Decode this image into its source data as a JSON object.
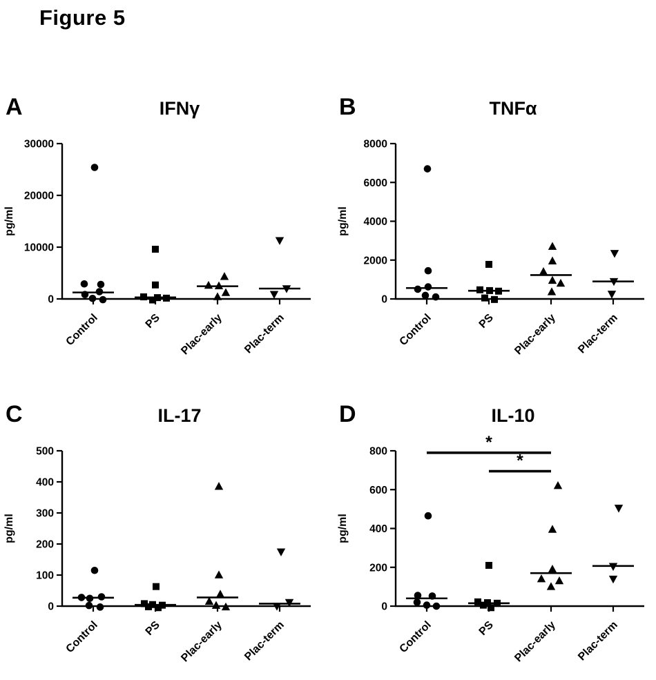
{
  "figure": {
    "title": "Figure 5"
  },
  "style": {
    "ink": "#000000",
    "background": "#ffffff"
  },
  "marker_glyphs": {
    "circle": "●",
    "square": "■",
    "triangle-up": "▲",
    "triangle-down": "▼"
  },
  "chart_data": [
    {
      "panel": "A",
      "type": "scatter",
      "title": "IFNγ",
      "ylabel": "pg/ml",
      "ylim": [
        0,
        30000
      ],
      "yticks": [
        0,
        10000,
        20000,
        30000
      ],
      "categories": [
        "Control",
        "PS",
        "Plac-early",
        "Plac-term"
      ],
      "grid": false,
      "groups": [
        {
          "label": "Control",
          "marker": "circle",
          "median": 1250,
          "points": [
            [
              25400,
              2
            ],
            [
              2900,
              -13
            ],
            [
              2800,
              11
            ],
            [
              1400,
              9
            ],
            [
              850,
              -12
            ],
            [
              100,
              -1
            ],
            [
              -150,
              14
            ]
          ]
        },
        {
          "label": "PS",
          "marker": "square",
          "median": 300,
          "points": [
            [
              9600,
              0
            ],
            [
              2700,
              0
            ],
            [
              400,
              -17
            ],
            [
              250,
              3
            ],
            [
              150,
              16
            ],
            [
              -200,
              -4
            ]
          ]
        },
        {
          "label": "Plac-early",
          "marker": "triangle-up",
          "median": 2450,
          "points": [
            [
              4300,
              10
            ],
            [
              2600,
              -13
            ],
            [
              2500,
              2
            ],
            [
              1200,
              12
            ],
            [
              400,
              0
            ]
          ]
        },
        {
          "label": "Plac-term",
          "marker": "triangle-down",
          "median": 2000,
          "points": [
            [
              11300,
              0
            ],
            [
              2000,
              10
            ],
            [
              900,
              -8
            ]
          ]
        }
      ]
    },
    {
      "panel": "B",
      "type": "scatter",
      "title": "TNFα",
      "ylabel": "pg/ml",
      "ylim": [
        0,
        8000
      ],
      "yticks": [
        0,
        2000,
        4000,
        6000,
        8000
      ],
      "categories": [
        "Control",
        "PS",
        "Plac-early",
        "Plac-term"
      ],
      "grid": false,
      "groups": [
        {
          "label": "Control",
          "marker": "circle",
          "median": 560,
          "points": [
            [
              6700,
              1
            ],
            [
              1450,
              2
            ],
            [
              620,
              2
            ],
            [
              500,
              -13
            ],
            [
              180,
              -2
            ],
            [
              100,
              13
            ]
          ]
        },
        {
          "label": "PS",
          "marker": "square",
          "median": 420,
          "points": [
            [
              1780,
              0
            ],
            [
              470,
              -13
            ],
            [
              430,
              1
            ],
            [
              400,
              14
            ],
            [
              50,
              -6
            ],
            [
              -30,
              8
            ]
          ]
        },
        {
          "label": "Plac-early",
          "marker": "triangle-up",
          "median": 1230,
          "points": [
            [
              2700,
              2
            ],
            [
              1950,
              2
            ],
            [
              1400,
              -11
            ],
            [
              950,
              2
            ],
            [
              800,
              14
            ],
            [
              360,
              1
            ]
          ]
        },
        {
          "label": "Plac-term",
          "marker": "triangle-down",
          "median": 900,
          "points": [
            [
              2350,
              2
            ],
            [
              900,
              1
            ],
            [
              250,
              -2
            ]
          ]
        }
      ]
    },
    {
      "panel": "C",
      "type": "scatter",
      "title": "IL-17",
      "ylabel": "pg/ml",
      "ylim": [
        0,
        500
      ],
      "yticks": [
        0,
        100,
        200,
        300,
        400,
        500
      ],
      "categories": [
        "Control",
        "PS",
        "Plac-early",
        "Plac-term"
      ],
      "grid": false,
      "groups": [
        {
          "label": "Control",
          "marker": "circle",
          "median": 27,
          "points": [
            [
              115,
              2
            ],
            [
              30,
              12
            ],
            [
              28,
              -17
            ],
            [
              25,
              -5
            ],
            [
              2,
              -6
            ],
            [
              -3,
              10
            ]
          ]
        },
        {
          "label": "PS",
          "marker": "square",
          "median": 4,
          "points": [
            [
              63,
              1
            ],
            [
              8,
              -16
            ],
            [
              5,
              -4
            ],
            [
              3,
              10
            ],
            [
              -2,
              -10
            ],
            [
              -5,
              4
            ]
          ]
        },
        {
          "label": "Plac-early",
          "marker": "triangle-up",
          "median": 28,
          "points": [
            [
              385,
              2
            ],
            [
              100,
              2
            ],
            [
              38,
              4
            ],
            [
              15,
              -12
            ],
            [
              2,
              -2
            ],
            [
              -3,
              12
            ]
          ]
        },
        {
          "label": "Plac-term",
          "marker": "triangle-down",
          "median": 8,
          "points": [
            [
              175,
              2
            ],
            [
              12,
              14
            ],
            [
              0,
              -4
            ]
          ]
        }
      ]
    },
    {
      "panel": "D",
      "type": "scatter",
      "title": "IL-10",
      "ylabel": "pg/ml",
      "ylim": [
        0,
        800
      ],
      "yticks": [
        0,
        200,
        400,
        600,
        800
      ],
      "categories": [
        "Control",
        "PS",
        "Plac-early",
        "Plac-term"
      ],
      "grid": false,
      "groups": [
        {
          "label": "Control",
          "marker": "circle",
          "median": 40,
          "points": [
            [
              465,
              2
            ],
            [
              55,
              -13
            ],
            [
              52,
              8
            ],
            [
              20,
              -14
            ],
            [
              5,
              0
            ],
            [
              0,
              14
            ]
          ]
        },
        {
          "label": "PS",
          "marker": "square",
          "median": 15,
          "points": [
            [
              210,
              0
            ],
            [
              22,
              -16
            ],
            [
              18,
              -2
            ],
            [
              15,
              12
            ],
            [
              5,
              -8
            ],
            [
              -8,
              3
            ]
          ]
        },
        {
          "label": "Plac-early",
          "marker": "triangle-up",
          "median": 170,
          "points": [
            [
              620,
              10
            ],
            [
              395,
              2
            ],
            [
              190,
              2
            ],
            [
              140,
              -14
            ],
            [
              130,
              12
            ],
            [
              100,
              0
            ]
          ]
        },
        {
          "label": "Plac-term",
          "marker": "triangle-down",
          "median": 207,
          "points": [
            [
              505,
              8
            ],
            [
              205,
              0
            ],
            [
              140,
              0
            ]
          ]
        }
      ],
      "sig_bars": [
        {
          "from": 0,
          "to": 2,
          "y": 790,
          "label": "*"
        },
        {
          "from": 1,
          "to": 2,
          "y": 695,
          "label": "*"
        }
      ]
    }
  ]
}
